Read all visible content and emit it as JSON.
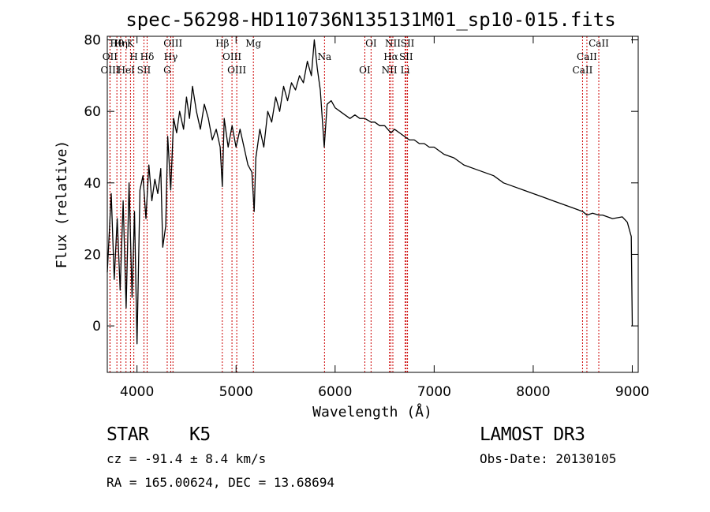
{
  "chart_data": {
    "type": "line",
    "title": "spec-56298-HD110736N135131M01_sp10-015.fits",
    "xlabel": "Wavelength (Å)",
    "ylabel": "Flux (relative)",
    "xlim": [
      3700,
      9060
    ],
    "ylim": [
      -13,
      81
    ],
    "xticks": [
      4000,
      5000,
      6000,
      7000,
      8000,
      9000
    ],
    "yticks": [
      0,
      20,
      40,
      60,
      80
    ],
    "grid": false,
    "series": [
      {
        "name": "flux",
        "x": [
          3700,
          3740,
          3770,
          3800,
          3830,
          3860,
          3890,
          3920,
          3950,
          3975,
          4000,
          4030,
          4060,
          4090,
          4120,
          4150,
          4180,
          4210,
          4240,
          4260,
          4290,
          4310,
          4340,
          4370,
          4400,
          4430,
          4470,
          4500,
          4530,
          4560,
          4600,
          4640,
          4680,
          4720,
          4760,
          4800,
          4840,
          4861,
          4880,
          4920,
          4960,
          5000,
          5040,
          5080,
          5120,
          5160,
          5183,
          5200,
          5240,
          5280,
          5320,
          5360,
          5400,
          5440,
          5480,
          5520,
          5560,
          5600,
          5640,
          5680,
          5720,
          5760,
          5790,
          5820,
          5850,
          5890,
          5920,
          5960,
          6000,
          6050,
          6100,
          6150,
          6200,
          6250,
          6300,
          6363,
          6400,
          6450,
          6500,
          6563,
          6600,
          6650,
          6700,
          6750,
          6800,
          6850,
          6900,
          6950,
          7000,
          7100,
          7200,
          7300,
          7400,
          7500,
          7600,
          7700,
          7800,
          7900,
          8000,
          8100,
          8200,
          8300,
          8400,
          8500,
          8542,
          8600,
          8662,
          8700,
          8800,
          8900,
          8950,
          8990,
          9000
        ],
        "values": [
          15,
          37,
          13,
          30,
          10,
          35,
          5,
          40,
          8,
          32,
          -5,
          38,
          42,
          30,
          45,
          35,
          41,
          37,
          44,
          22,
          28,
          53,
          38,
          58,
          54,
          60,
          55,
          64,
          58,
          67,
          60,
          55,
          62,
          58,
          52,
          55,
          50,
          39,
          58,
          50,
          56,
          50,
          55,
          50,
          45,
          43,
          32,
          47,
          55,
          50,
          60,
          57,
          64,
          60,
          67,
          63,
          68,
          66,
          70,
          68,
          74,
          70,
          80,
          72,
          66,
          50,
          62,
          63,
          61,
          60,
          59,
          58,
          59,
          58,
          58,
          57,
          57,
          56,
          56,
          54,
          55,
          54,
          53,
          52,
          52,
          51,
          51,
          50,
          50,
          48,
          47,
          45,
          44,
          43,
          42,
          40,
          39,
          38,
          37,
          36,
          35,
          34,
          33,
          32,
          31,
          31.5,
          31,
          31,
          30,
          30.5,
          29,
          25,
          0
        ]
      }
    ],
    "lines": [
      {
        "label": "Hθ",
        "x": 3797
      },
      {
        "label": "OII",
        "x": 3727
      },
      {
        "label": "OIII",
        "x": 3728
      },
      {
        "label": "K",
        "x": 3934
      },
      {
        "label": "H",
        "x": 3968
      },
      {
        "label": "HeI",
        "x": 3889
      },
      {
        "label": "Hη",
        "x": 3835
      },
      {
        "label": "Hδ",
        "x": 4102
      },
      {
        "label": "SII",
        "x": 4070
      },
      {
        "label": "OIII",
        "x": 4363
      },
      {
        "label": "Hγ",
        "x": 4341
      },
      {
        "label": "G",
        "x": 4305
      },
      {
        "label": "Hβ",
        "x": 4861
      },
      {
        "label": "OIII",
        "x": 4959
      },
      {
        "label": "OIII",
        "x": 5007
      },
      {
        "label": "Mg",
        "x": 5175
      },
      {
        "label": "Na",
        "x": 5893
      },
      {
        "label": "OI",
        "x": 6300
      },
      {
        "label": "OI",
        "x": 6363
      },
      {
        "label": "Hα",
        "x": 6563
      },
      {
        "label": "NII",
        "x": 6548
      },
      {
        "label": "NII",
        "x": 6583
      },
      {
        "label": "SII",
        "x": 6717
      },
      {
        "label": "Li",
        "x": 6707
      },
      {
        "label": "SII",
        "x": 6731
      },
      {
        "label": "CaII",
        "x": 8542
      },
      {
        "label": "CaII",
        "x": 8498
      },
      {
        "label": "CaII",
        "x": 8662
      }
    ]
  },
  "footer": {
    "object_class": "STAR",
    "subclass": "K5",
    "survey": "LAMOST DR3",
    "redshift": "cz = -91.4 ± 8.4 km/s",
    "obs_date": "Obs-Date: 20130105",
    "coords": "RA = 165.00624, DEC =  13.68694"
  }
}
